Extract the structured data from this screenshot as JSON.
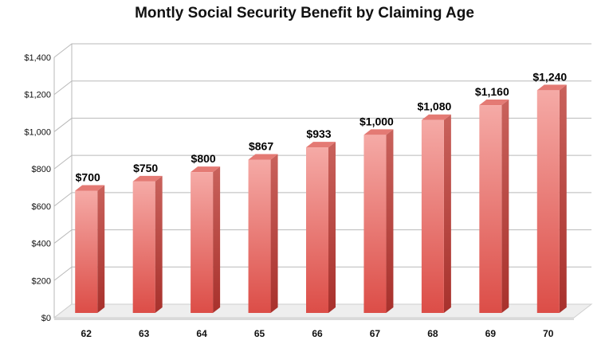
{
  "chart_data": {
    "type": "bar",
    "title": "Montly Social Security Benefit by Claiming Age",
    "xlabel": "",
    "ylabel": "",
    "categories": [
      "62",
      "63",
      "64",
      "65",
      "66",
      "67",
      "68",
      "69",
      "70"
    ],
    "values": [
      700,
      750,
      800,
      867,
      933,
      1000,
      1080,
      1160,
      1240
    ],
    "data_labels": [
      "$700",
      "$750",
      "$800",
      "$867",
      "$933",
      "$1,000",
      "$1,080",
      "$1,160",
      "$1,240"
    ],
    "ylim": [
      0,
      1400
    ],
    "yticks": [
      0,
      200,
      400,
      600,
      800,
      1000,
      1200,
      1400
    ],
    "ytick_labels": [
      "$0",
      "$200",
      "$400",
      "$600",
      "$800",
      "$1,000",
      "$1,200",
      "$1,400"
    ],
    "grid": true,
    "legend": "none",
    "style": "3d",
    "colors": {
      "bar_light": "#f5aaa6",
      "bar_dark": "#dc4d47",
      "bar_side": "#b23a35",
      "bar_top": "#e47a74",
      "grid": "#b9b9b9"
    }
  }
}
